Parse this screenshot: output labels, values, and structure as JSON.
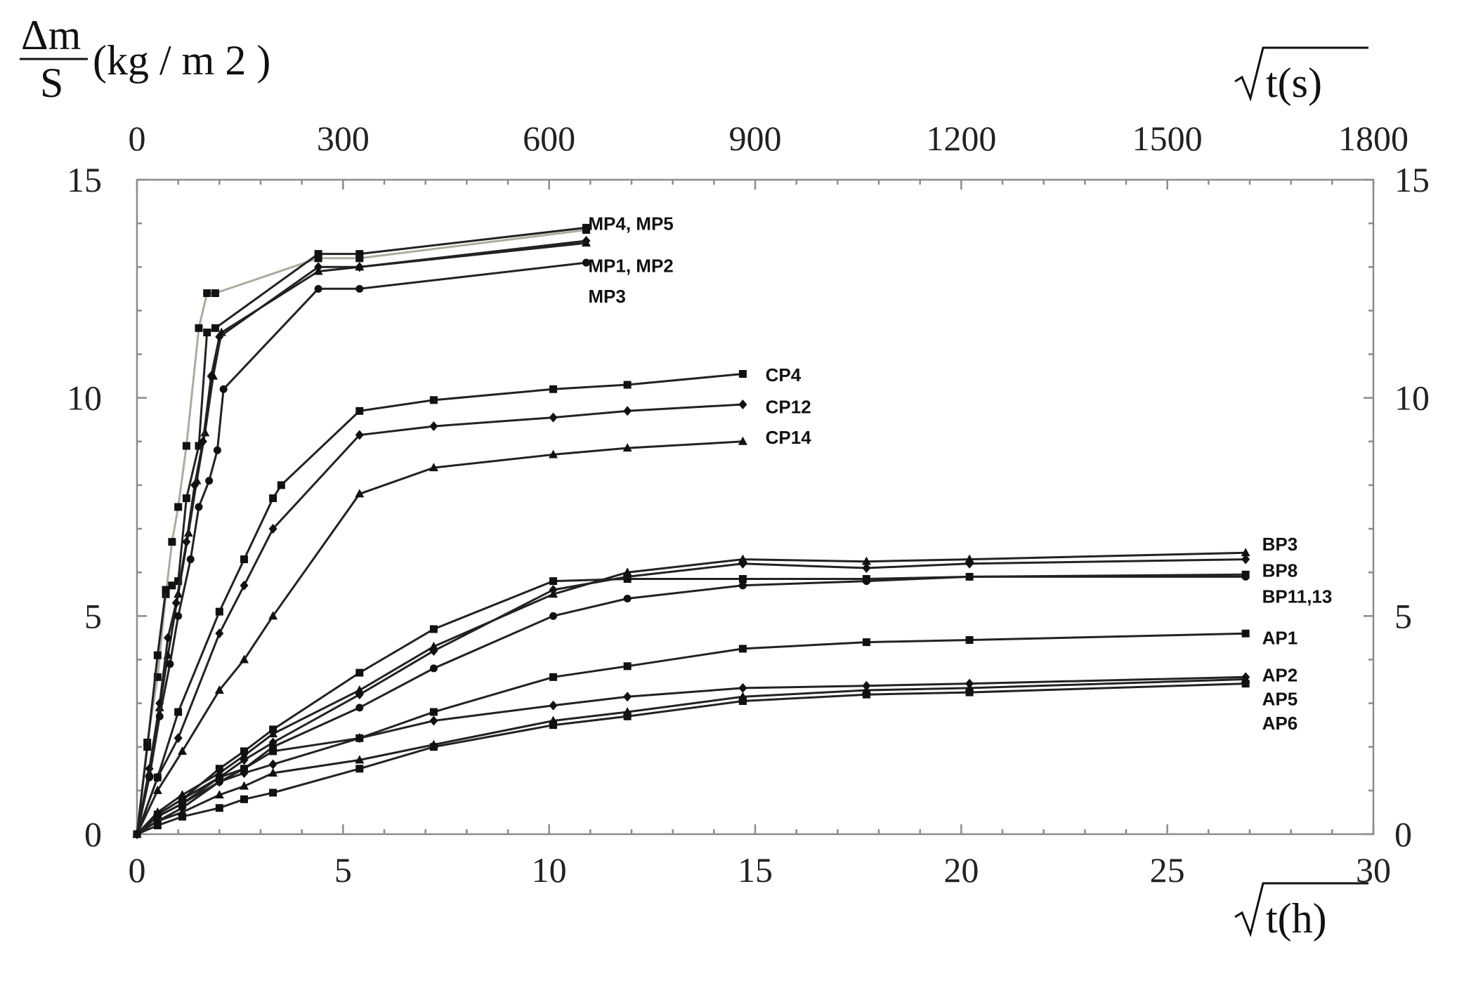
{
  "chart_data": {
    "type": "line",
    "ylabel": {
      "numerator": "Δm",
      "denominator": "S",
      "unit": "(kg / m 2 )"
    },
    "xlabel_bottom": "√t(h)",
    "xlabel_top": "√t(s)",
    "xlim_bottom": [
      0,
      30
    ],
    "xlim_top": [
      0,
      1800
    ],
    "ylim": [
      0,
      15
    ],
    "x_ticks_bottom": [
      0,
      5,
      10,
      15,
      20,
      25,
      30
    ],
    "x_ticks_top": [
      0,
      300,
      600,
      900,
      1200,
      1500,
      1800
    ],
    "y_ticks": [
      0,
      5,
      10,
      15
    ],
    "grid": false,
    "labels": [
      {
        "text": "MP4, MP5",
        "at": [
          10.95,
          13.85
        ]
      },
      {
        "text": "MP1, MP2",
        "at": [
          10.95,
          12.88
        ]
      },
      {
        "text": "MP3",
        "at": [
          10.95,
          12.18
        ]
      },
      {
        "text": "CP4",
        "at": [
          15.25,
          10.38
        ]
      },
      {
        "text": "CP12",
        "at": [
          15.25,
          9.65
        ]
      },
      {
        "text": "CP14",
        "at": [
          15.25,
          8.95
        ]
      },
      {
        "text": "BP3",
        "at": [
          27.3,
          6.5
        ]
      },
      {
        "text": "BP8",
        "at": [
          27.3,
          5.9
        ]
      },
      {
        "text": "BP11,13",
        "at": [
          27.3,
          5.3
        ]
      },
      {
        "text": "AP1",
        "at": [
          27.3,
          4.35
        ]
      },
      {
        "text": "AP2",
        "at": [
          27.3,
          3.5
        ]
      },
      {
        "text": "AP5",
        "at": [
          27.3,
          2.95
        ]
      },
      {
        "text": "AP6",
        "at": [
          27.3,
          2.4
        ]
      }
    ],
    "series": [
      {
        "marker": "square",
        "light": true,
        "x": [
          0,
          0.25,
          0.5,
          0.7,
          0.85,
          1.0,
          1.2,
          1.5,
          1.7,
          1.9,
          4.4,
          5.4,
          10.9
        ],
        "y": [
          0,
          2.1,
          3.6,
          5.5,
          6.7,
          7.5,
          8.9,
          11.6,
          12.4,
          12.4,
          13.2,
          13.2,
          13.85
        ]
      },
      {
        "marker": "square",
        "x": [
          0,
          0.25,
          0.5,
          0.7,
          0.85,
          1.0,
          1.2,
          1.5,
          1.7,
          1.9,
          4.4,
          5.4,
          10.9
        ],
        "y": [
          0,
          2.0,
          4.1,
          5.6,
          5.7,
          5.8,
          7.7,
          8.9,
          11.5,
          11.6,
          13.3,
          13.3,
          13.9
        ]
      },
      {
        "marker": "triangle",
        "x": [
          0,
          0.3,
          0.55,
          0.75,
          1.0,
          1.25,
          1.45,
          1.65,
          1.85,
          2.05,
          4.4,
          5.4,
          10.9
        ],
        "y": [
          0,
          1.4,
          2.9,
          4.1,
          5.5,
          6.9,
          8.1,
          9.2,
          10.5,
          11.5,
          12.9,
          13.0,
          13.55
        ]
      },
      {
        "marker": "diamond",
        "x": [
          0,
          0.3,
          0.55,
          0.75,
          0.95,
          1.2,
          1.4,
          1.6,
          1.8,
          2.0,
          4.4,
          5.4,
          10.9
        ],
        "y": [
          0,
          1.5,
          3.0,
          4.5,
          5.3,
          6.7,
          8.0,
          9.0,
          10.5,
          11.4,
          13.0,
          13.0,
          13.6
        ]
      },
      {
        "marker": "circle",
        "x": [
          0,
          0.3,
          0.55,
          0.8,
          1.0,
          1.3,
          1.5,
          1.75,
          1.95,
          2.1,
          4.4,
          5.4,
          10.9
        ],
        "y": [
          0,
          1.3,
          2.7,
          3.9,
          5.0,
          6.3,
          7.5,
          8.1,
          8.8,
          10.2,
          12.5,
          12.5,
          13.1
        ]
      },
      {
        "marker": "square",
        "x": [
          0,
          0.5,
          1.0,
          2.0,
          2.6,
          3.3,
          3.5,
          5.4,
          7.2,
          10.1,
          11.9,
          14.7
        ],
        "y": [
          0,
          1.3,
          2.8,
          5.1,
          6.3,
          7.7,
          8.0,
          9.7,
          9.95,
          10.2,
          10.3,
          10.55
        ]
      },
      {
        "marker": "diamond",
        "x": [
          0,
          0.5,
          1.0,
          2.0,
          2.6,
          3.3,
          5.4,
          7.2,
          10.1,
          11.9,
          14.7
        ],
        "y": [
          0,
          1.3,
          2.2,
          4.6,
          5.7,
          7.0,
          9.15,
          9.35,
          9.55,
          9.7,
          9.85
        ]
      },
      {
        "marker": "triangle",
        "x": [
          0,
          0.5,
          1.1,
          2.0,
          2.6,
          3.3,
          5.4,
          7.2,
          10.1,
          11.9,
          14.7
        ],
        "y": [
          0,
          1.0,
          1.9,
          3.3,
          4.0,
          5.0,
          7.8,
          8.4,
          8.7,
          8.85,
          9.0
        ]
      },
      {
        "marker": "triangle",
        "x": [
          0,
          0.5,
          1.1,
          2.0,
          2.6,
          3.3,
          5.4,
          7.2,
          10.1,
          11.9,
          14.7,
          17.7,
          20.2,
          26.9
        ],
        "y": [
          0,
          0.5,
          0.9,
          1.4,
          1.8,
          2.3,
          3.3,
          4.3,
          5.5,
          6.0,
          6.3,
          6.25,
          6.3,
          6.45
        ]
      },
      {
        "marker": "diamond",
        "x": [
          0,
          0.5,
          1.1,
          2.0,
          2.6,
          3.3,
          5.4,
          7.2,
          10.1,
          11.9,
          14.7,
          17.7,
          20.2,
          26.9
        ],
        "y": [
          0,
          0.45,
          0.8,
          1.3,
          1.7,
          2.1,
          3.2,
          4.2,
          5.6,
          5.9,
          6.2,
          6.1,
          6.2,
          6.3
        ]
      },
      {
        "marker": "square",
        "x": [
          0,
          0.5,
          1.1,
          2.0,
          2.6,
          3.3,
          5.4,
          7.2,
          10.1,
          11.9,
          14.7,
          17.7,
          20.2,
          26.9
        ],
        "y": [
          0,
          0.45,
          0.8,
          1.5,
          1.9,
          2.4,
          3.7,
          4.7,
          5.8,
          5.85,
          5.85,
          5.85,
          5.9,
          5.95
        ]
      },
      {
        "marker": "circle",
        "x": [
          0,
          0.5,
          1.1,
          2.0,
          2.6,
          3.3,
          5.4,
          7.2,
          10.1,
          11.9,
          14.7,
          17.7,
          20.2,
          26.9
        ],
        "y": [
          0,
          0.4,
          0.7,
          1.2,
          1.5,
          2.0,
          2.9,
          3.8,
          5.0,
          5.4,
          5.7,
          5.8,
          5.9,
          5.9
        ]
      },
      {
        "marker": "square",
        "x": [
          0,
          0.5,
          1.1,
          2.0,
          2.6,
          3.3,
          5.4,
          7.2,
          10.1,
          11.9,
          14.7,
          17.7,
          20.2,
          26.9
        ],
        "y": [
          0,
          0.4,
          0.7,
          1.3,
          1.5,
          1.9,
          2.2,
          2.8,
          3.6,
          3.85,
          4.25,
          4.4,
          4.45,
          4.6
        ]
      },
      {
        "marker": "diamond",
        "x": [
          0,
          0.5,
          1.1,
          2.0,
          2.6,
          3.3,
          5.4,
          7.2,
          10.1,
          11.9,
          14.7,
          17.7,
          20.2,
          26.9
        ],
        "y": [
          0,
          0.3,
          0.6,
          1.2,
          1.4,
          1.6,
          2.2,
          2.6,
          2.95,
          3.15,
          3.35,
          3.4,
          3.45,
          3.6
        ]
      },
      {
        "marker": "triangle",
        "x": [
          0,
          0.5,
          1.1,
          2.0,
          2.6,
          3.3,
          5.4,
          7.2,
          10.1,
          11.9,
          14.7,
          17.7,
          20.2,
          26.9
        ],
        "y": [
          0,
          0.3,
          0.5,
          0.9,
          1.1,
          1.4,
          1.7,
          2.05,
          2.6,
          2.8,
          3.15,
          3.3,
          3.35,
          3.55
        ]
      },
      {
        "marker": "square",
        "x": [
          0,
          0.5,
          1.1,
          2.0,
          2.6,
          3.3,
          5.4,
          7.2,
          10.1,
          11.9,
          14.7,
          17.7,
          20.2,
          26.9
        ],
        "y": [
          0,
          0.2,
          0.4,
          0.6,
          0.8,
          0.95,
          1.5,
          2.0,
          2.5,
          2.7,
          3.05,
          3.2,
          3.25,
          3.45
        ]
      }
    ]
  }
}
